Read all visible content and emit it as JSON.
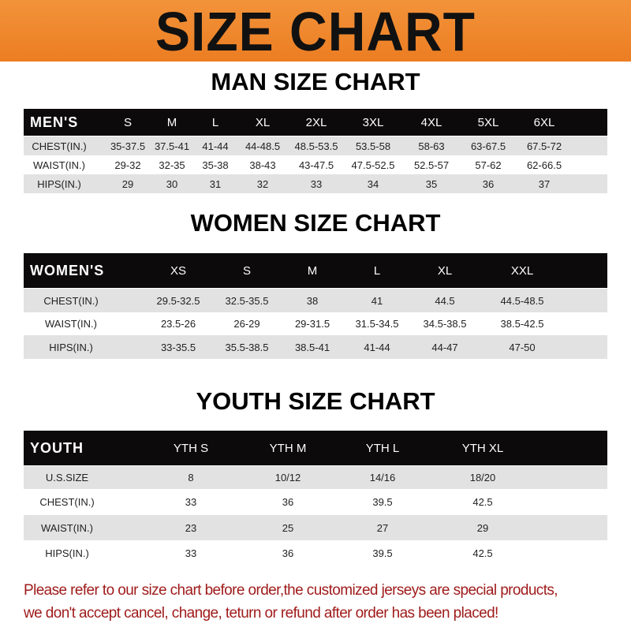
{
  "banner_title": "SIZE CHART",
  "men": {
    "title": "MAN SIZE CHART",
    "corner": "MEN'S",
    "sizes": [
      "S",
      "M",
      "L",
      "XL",
      "2XL",
      "3XL",
      "4XL",
      "5XL",
      "6XL"
    ],
    "rows": [
      {
        "label": "CHEST(IN.)",
        "values": [
          "35-37.5",
          "37.5-41",
          "41-44",
          "44-48.5",
          "48.5-53.5",
          "53.5-58",
          "58-63",
          "63-67.5",
          "67.5-72"
        ]
      },
      {
        "label": "WAIST(IN.)",
        "values": [
          "29-32",
          "32-35",
          "35-38",
          "38-43",
          "43-47.5",
          "47.5-52.5",
          "52.5-57",
          "57-62",
          "62-66.5"
        ]
      },
      {
        "label": "HIPS(IN.)",
        "values": [
          "29",
          "30",
          "31",
          "32",
          "33",
          "34",
          "35",
          "36",
          "37"
        ]
      }
    ]
  },
  "women": {
    "title": "WOMEN SIZE CHART",
    "corner": "WOMEN'S",
    "sizes": [
      "XS",
      "S",
      "M",
      "L",
      "XL",
      "XXL"
    ],
    "rows": [
      {
        "label": "CHEST(IN.)",
        "values": [
          "29.5-32.5",
          "32.5-35.5",
          "38",
          "41",
          "44.5",
          "44.5-48.5"
        ]
      },
      {
        "label": "WAIST(IN.)",
        "values": [
          "23.5-26",
          "26-29",
          "29-31.5",
          "31.5-34.5",
          "34.5-38.5",
          "38.5-42.5"
        ]
      },
      {
        "label": "HIPS(IN.)",
        "values": [
          "33-35.5",
          "35.5-38.5",
          "38.5-41",
          "41-44",
          "44-47",
          "47-50"
        ]
      }
    ]
  },
  "youth": {
    "title": "YOUTH SIZE CHART",
    "corner": "YOUTH",
    "sizes": [
      "YTH S",
      "YTH M",
      "YTH L",
      "YTH XL"
    ],
    "rows": [
      {
        "label": "U.S.SIZE",
        "values": [
          "8",
          "10/12",
          "14/16",
          "18/20"
        ]
      },
      {
        "label": "CHEST(IN.)",
        "values": [
          "33",
          "36",
          "39.5",
          "42.5"
        ]
      },
      {
        "label": "WAIST(IN.)",
        "values": [
          "23",
          "25",
          "27",
          "29"
        ]
      },
      {
        "label": "HIPS(IN.)",
        "values": [
          "33",
          "36",
          "39.5",
          "42.5"
        ]
      }
    ]
  },
  "footer": {
    "line1": "Please refer to our size chart before order,the customized jerseys are special products,",
    "line2": "we don't accept cancel, change, teturn or refund after order has been placed!"
  },
  "colors": {
    "banner": "#ef8a2e",
    "header_row": "#0c0a0a",
    "stripe": "#e2e2e2",
    "notice": "#a01c1c"
  }
}
